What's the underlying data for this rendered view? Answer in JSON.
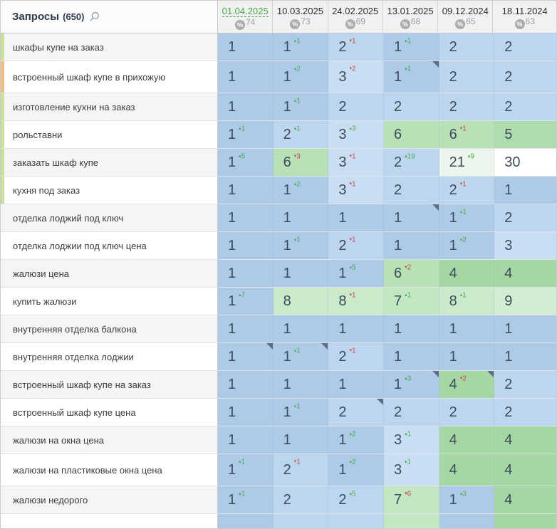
{
  "header": {
    "title": "Запросы",
    "count": "(650)"
  },
  "columns": [
    {
      "date": "01.04.2025",
      "percent": "74",
      "selected": true
    },
    {
      "date": "10.03.2025",
      "percent": "73",
      "selected": false
    },
    {
      "date": "24.02.2025",
      "percent": "69",
      "selected": false
    },
    {
      "date": "13.01.2025",
      "percent": "68",
      "selected": false
    },
    {
      "date": "09.12.2024",
      "percent": "65",
      "selected": false
    },
    {
      "date": "18.11.2024",
      "percent": "63",
      "selected": false
    }
  ],
  "rows": [
    {
      "query": "шкафы купе на заказ",
      "stripe": "green",
      "tall": false,
      "cells": [
        {
          "pos": "1"
        },
        {
          "pos": "1",
          "delta": "1",
          "dir": "up"
        },
        {
          "pos": "2",
          "delta": "1",
          "dir": "down"
        },
        {
          "pos": "1",
          "delta": "1",
          "dir": "up"
        },
        {
          "pos": "2"
        },
        {
          "pos": "2"
        }
      ]
    },
    {
      "query": "встроенный шкаф купе в прихожую",
      "stripe": "orange",
      "tall": true,
      "cells": [
        {
          "pos": "1"
        },
        {
          "pos": "1",
          "delta": "2",
          "dir": "up"
        },
        {
          "pos": "3",
          "delta": "2",
          "dir": "down"
        },
        {
          "pos": "1",
          "delta": "1",
          "dir": "up",
          "note": true
        },
        {
          "pos": "2"
        },
        {
          "pos": "2"
        }
      ]
    },
    {
      "query": "изготовление кухни на заказ",
      "stripe": "green",
      "tall": false,
      "cells": [
        {
          "pos": "1"
        },
        {
          "pos": "1",
          "delta": "1",
          "dir": "up"
        },
        {
          "pos": "2"
        },
        {
          "pos": "2"
        },
        {
          "pos": "2"
        },
        {
          "pos": "2"
        }
      ]
    },
    {
      "query": "рольставни",
      "stripe": "green",
      "tall": false,
      "cells": [
        {
          "pos": "1",
          "delta": "1",
          "dir": "up"
        },
        {
          "pos": "2",
          "delta": "1",
          "dir": "up"
        },
        {
          "pos": "3",
          "delta": "3",
          "dir": "up"
        },
        {
          "pos": "6"
        },
        {
          "pos": "6",
          "delta": "1",
          "dir": "down"
        },
        {
          "pos": "5"
        }
      ]
    },
    {
      "query": "заказать шкаф купе",
      "stripe": "green",
      "tall": false,
      "cells": [
        {
          "pos": "1",
          "delta": "5",
          "dir": "up"
        },
        {
          "pos": "6",
          "delta": "3",
          "dir": "down"
        },
        {
          "pos": "3",
          "delta": "1",
          "dir": "down"
        },
        {
          "pos": "2",
          "delta": "19",
          "dir": "up"
        },
        {
          "pos": "21",
          "delta": "9",
          "dir": "up"
        },
        {
          "pos": "30"
        }
      ]
    },
    {
      "query": "кухня под заказ",
      "stripe": "green",
      "tall": false,
      "cells": [
        {
          "pos": "1"
        },
        {
          "pos": "1",
          "delta": "2",
          "dir": "up"
        },
        {
          "pos": "3",
          "delta": "1",
          "dir": "down"
        },
        {
          "pos": "2"
        },
        {
          "pos": "2",
          "delta": "1",
          "dir": "down"
        },
        {
          "pos": "1"
        }
      ]
    },
    {
      "query": "отделка лоджий под ключ",
      "stripe": null,
      "tall": false,
      "cells": [
        {
          "pos": "1"
        },
        {
          "pos": "1"
        },
        {
          "pos": "1"
        },
        {
          "pos": "1",
          "note": true
        },
        {
          "pos": "1",
          "delta": "1",
          "dir": "up"
        },
        {
          "pos": "2"
        }
      ]
    },
    {
      "query": "отделка лоджии под ключ цена",
      "stripe": null,
      "tall": false,
      "cells": [
        {
          "pos": "1"
        },
        {
          "pos": "1",
          "delta": "1",
          "dir": "up"
        },
        {
          "pos": "2",
          "delta": "1",
          "dir": "down"
        },
        {
          "pos": "1"
        },
        {
          "pos": "1",
          "delta": "2",
          "dir": "up"
        },
        {
          "pos": "3"
        }
      ]
    },
    {
      "query": "жалюзи цена",
      "stripe": null,
      "tall": false,
      "cells": [
        {
          "pos": "1"
        },
        {
          "pos": "1"
        },
        {
          "pos": "1",
          "delta": "5",
          "dir": "up"
        },
        {
          "pos": "6",
          "delta": "2",
          "dir": "down"
        },
        {
          "pos": "4"
        },
        {
          "pos": "4"
        }
      ]
    },
    {
      "query": "купить жалюзи",
      "stripe": null,
      "tall": false,
      "cells": [
        {
          "pos": "1",
          "delta": "7",
          "dir": "up"
        },
        {
          "pos": "8"
        },
        {
          "pos": "8",
          "delta": "1",
          "dir": "down"
        },
        {
          "pos": "7",
          "delta": "1",
          "dir": "up"
        },
        {
          "pos": "8",
          "delta": "1",
          "dir": "up"
        },
        {
          "pos": "9"
        }
      ]
    },
    {
      "query": "внутренняя отделка балкона",
      "stripe": null,
      "tall": false,
      "cells": [
        {
          "pos": "1"
        },
        {
          "pos": "1"
        },
        {
          "pos": "1"
        },
        {
          "pos": "1"
        },
        {
          "pos": "1"
        },
        {
          "pos": "1"
        }
      ]
    },
    {
      "query": "внутренняя отделка лоджии",
      "stripe": null,
      "tall": false,
      "cells": [
        {
          "pos": "1",
          "note": true
        },
        {
          "pos": "1",
          "delta": "1",
          "dir": "up",
          "note": true
        },
        {
          "pos": "2",
          "delta": "1",
          "dir": "down"
        },
        {
          "pos": "1"
        },
        {
          "pos": "1"
        },
        {
          "pos": "1"
        }
      ]
    },
    {
      "query": "встроенный шкаф купе на заказ",
      "stripe": null,
      "tall": false,
      "cells": [
        {
          "pos": "1"
        },
        {
          "pos": "1"
        },
        {
          "pos": "1"
        },
        {
          "pos": "1",
          "delta": "3",
          "dir": "up",
          "note": true
        },
        {
          "pos": "4",
          "delta": "2",
          "dir": "down",
          "note": true
        },
        {
          "pos": "2"
        }
      ]
    },
    {
      "query": "встроенный шкаф купе цена",
      "stripe": null,
      "tall": false,
      "cells": [
        {
          "pos": "1"
        },
        {
          "pos": "1",
          "delta": "1",
          "dir": "up"
        },
        {
          "pos": "2",
          "note": true
        },
        {
          "pos": "2"
        },
        {
          "pos": "2"
        },
        {
          "pos": "2"
        }
      ]
    },
    {
      "query": "жалюзи на окна цена",
      "stripe": null,
      "tall": false,
      "cells": [
        {
          "pos": "1"
        },
        {
          "pos": "1"
        },
        {
          "pos": "1",
          "delta": "2",
          "dir": "up"
        },
        {
          "pos": "3",
          "delta": "1",
          "dir": "up"
        },
        {
          "pos": "4"
        },
        {
          "pos": "4"
        }
      ]
    },
    {
      "query": "жалюзи на пластиковые окна цена",
      "stripe": null,
      "tall": true,
      "cells": [
        {
          "pos": "1",
          "delta": "1",
          "dir": "up"
        },
        {
          "pos": "2",
          "delta": "1",
          "dir": "down"
        },
        {
          "pos": "1",
          "delta": "2",
          "dir": "up"
        },
        {
          "pos": "3",
          "delta": "1",
          "dir": "up"
        },
        {
          "pos": "4"
        },
        {
          "pos": "4"
        }
      ]
    },
    {
      "query": "жалюзи недорого",
      "stripe": null,
      "tall": false,
      "cells": [
        {
          "pos": "1",
          "delta": "1",
          "dir": "up"
        },
        {
          "pos": "2"
        },
        {
          "pos": "2",
          "delta": "5",
          "dir": "up"
        },
        {
          "pos": "7",
          "delta": "6",
          "dir": "down"
        },
        {
          "pos": "1",
          "delta": "3",
          "dir": "up"
        },
        {
          "pos": "4"
        }
      ]
    }
  ],
  "colors": {
    "selected_date": "#4ba64b",
    "delta_up": "#4cab4c",
    "delta_down": "#cb4b48",
    "note_marker": "#5d6e84",
    "stripe_green": "#c9df9b",
    "stripe_orange": "#edbf82",
    "position_bg": {
      "1": "#adcbe9",
      "2": "#bdd6ef",
      "3": "#cadef3",
      "4": "#a5d7a5",
      "5": "#aedcae",
      "6": "#b8e1b8",
      "7": "#c3e7c3",
      "8": "#cbeacb",
      "9": "#d3edd3",
      "21": "#edf6ed",
      "30": "#ffffff"
    }
  },
  "icons": {
    "search": "magnifier",
    "percent_badge": "percent-circle",
    "delta_up_glyph": "▴",
    "delta_down_glyph": "▾"
  }
}
